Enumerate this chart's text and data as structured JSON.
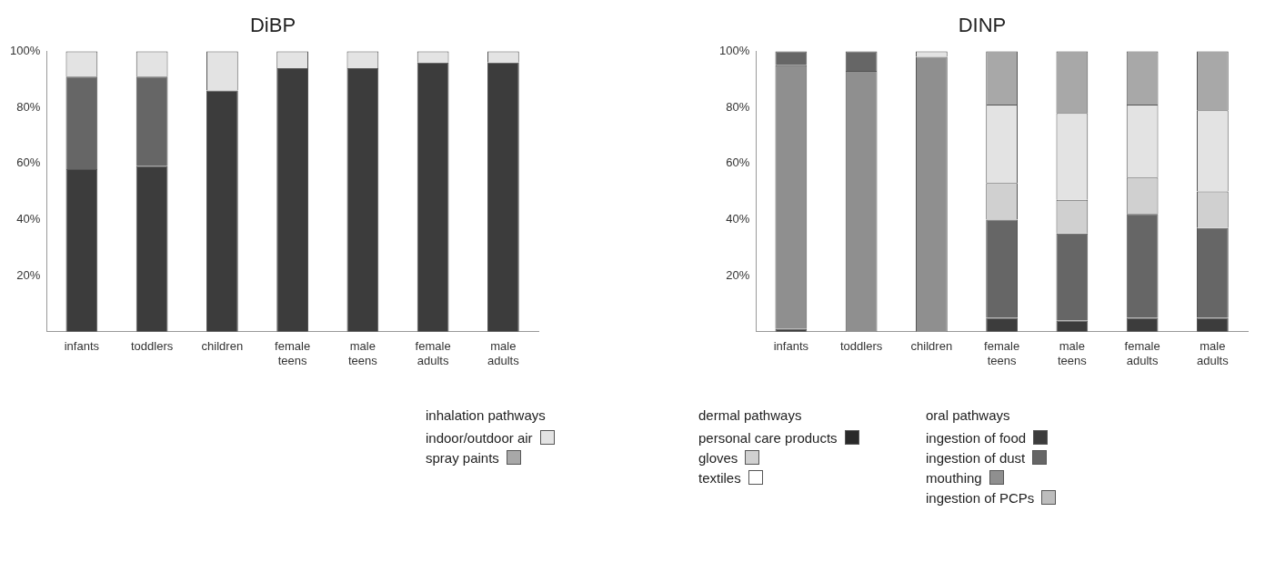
{
  "chart_data": [
    {
      "type": "bar",
      "title": "DiBP",
      "stacked": true,
      "categories": [
        "infants",
        "toddlers",
        "children",
        "female teens",
        "male teens",
        "female adults",
        "male adults"
      ],
      "ylim": [
        0,
        100
      ],
      "yticks": [
        {
          "value": 0,
          "label": null
        },
        {
          "value": 20,
          "label": "20%"
        },
        {
          "value": 40,
          "label": "40%"
        },
        {
          "value": 60,
          "label": "60%"
        },
        {
          "value": 80,
          "label": "80%"
        },
        {
          "value": 100,
          "label": "100%"
        }
      ],
      "grid": false,
      "series": [
        {
          "color": "#3c3c3c",
          "values": [
            58,
            59,
            86,
            94,
            94,
            96,
            96
          ]
        },
        {
          "color": "#666666",
          "values": [
            33,
            32,
            0,
            0,
            0,
            0,
            0
          ]
        },
        {
          "color": "#e3e3e3",
          "values": [
            9,
            9,
            14,
            6,
            6,
            4,
            4
          ]
        }
      ]
    },
    {
      "type": "bar",
      "title": "DINP",
      "stacked": true,
      "legend": "bottom",
      "categories": [
        "infants",
        "toddlers",
        "children",
        "female teens",
        "male teens",
        "female adults",
        "male adults"
      ],
      "ylim": [
        0,
        100
      ],
      "yticks": [
        {
          "value": 0,
          "label": null
        },
        {
          "value": 20,
          "label": "20%"
        },
        {
          "value": 40,
          "label": "40%"
        },
        {
          "value": 60,
          "label": "60%"
        },
        {
          "value": 80,
          "label": "80%"
        },
        {
          "value": 100,
          "label": "100%"
        }
      ],
      "grid": false,
      "annotations": [
        "inhalation pathways",
        "dermal pathways",
        "oral pathways"
      ],
      "series": [
        {
          "name": "ingestion of food",
          "color": "#3c3c3c",
          "values": [
            1,
            0,
            0,
            5,
            4,
            5,
            5
          ]
        },
        {
          "name": "mouthing",
          "color": "#8f8f8f",
          "values": [
            94,
            93,
            98,
            0,
            0,
            0,
            0
          ]
        },
        {
          "name": "ingestion of dust",
          "color": "#666666",
          "values": [
            5,
            7,
            0,
            35,
            31,
            37,
            32
          ]
        },
        {
          "name": "ingestion of PCPs",
          "color": "#bdbdbd",
          "values": [
            0,
            0,
            0,
            0,
            0,
            0,
            0
          ]
        },
        {
          "name": "personal care products",
          "color": "#2a2a2a",
          "values": [
            0,
            0,
            0,
            0,
            0,
            0,
            0
          ]
        },
        {
          "name": "gloves",
          "color": "#d0d0d0",
          "values": [
            0,
            0,
            0,
            13,
            12,
            13,
            13
          ]
        },
        {
          "name": "textiles",
          "color": "#ffffff",
          "values": [
            0,
            0,
            0,
            0,
            0,
            0,
            0
          ]
        },
        {
          "name": "indoor/outdoor air",
          "color": "#e3e3e3",
          "values": [
            0,
            0,
            2,
            28,
            31,
            26,
            29
          ]
        },
        {
          "name": "spray paints",
          "color": "#a8a8a8",
          "values": [
            0,
            0,
            0,
            19,
            22,
            19,
            21
          ]
        }
      ]
    }
  ]
}
